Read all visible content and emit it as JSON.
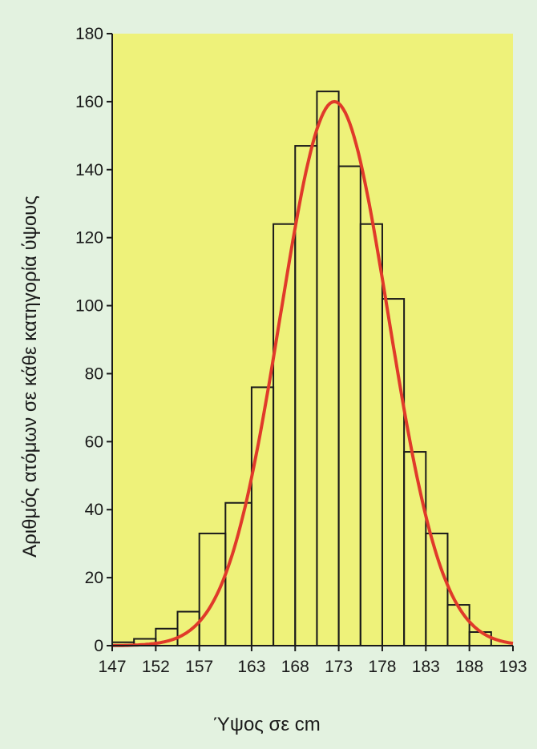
{
  "colors": {
    "page_background": "#e3f2e0",
    "plot_background": "#eef27a",
    "bar_stroke": "#1a1a1a",
    "curve": "#e03a2a"
  },
  "chart_data": {
    "type": "bar",
    "title": "",
    "xlabel": "Ύψος σε cm",
    "ylabel": "Αριθμός ατόμων σε κάθε κατηγορία ύψους",
    "x_tick_labels": [
      "147",
      "152",
      "157",
      "163",
      "168",
      "173",
      "178",
      "183",
      "188",
      "193"
    ],
    "bin_edges": [
      147,
      149.5,
      152,
      154.5,
      157,
      160,
      163,
      165.5,
      168,
      170.5,
      173,
      175.5,
      178,
      180.5,
      183,
      185.5,
      188,
      190.5,
      193
    ],
    "values": [
      1,
      2,
      5,
      10,
      33,
      42,
      76,
      124,
      147,
      163,
      141,
      124,
      102,
      57,
      33,
      12,
      4,
      0
    ],
    "ylim": [
      0,
      180
    ],
    "yticks": [
      0,
      20,
      40,
      60,
      80,
      100,
      120,
      140,
      160,
      180
    ],
    "fit_curve": {
      "type": "normal",
      "mean": 172.5,
      "sd": 6.2,
      "peak": 160
    },
    "grid": false,
    "legend": "none"
  }
}
